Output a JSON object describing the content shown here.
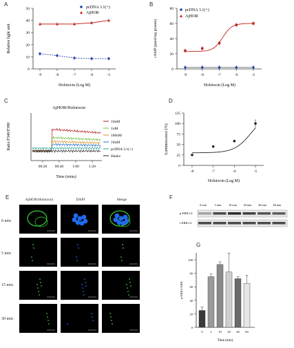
{
  "panels": {
    "A": {
      "label": "A",
      "ylabel": "Relative light unit",
      "xlabel": "Holotocin (Log M)",
      "xticks": [
        "-9",
        "-8",
        "-7",
        "-6",
        "-5"
      ],
      "yticks": [
        "0",
        "10",
        "20",
        "30",
        "40",
        "50"
      ],
      "legend": [
        "pcDNA 3.1(+)",
        "AjHOR"
      ]
    },
    "B": {
      "label": "B",
      "ylabel": "cAMP (pmol/mg protein)",
      "xlabel": "Holotocin (Log M)",
      "xticks": [
        "-9",
        "-8",
        "-7",
        "-6",
        "-5"
      ],
      "yticks": [
        "0",
        "20",
        "40",
        "60",
        "80"
      ],
      "legend": [
        "pcDNA 3.1(+)",
        "AjHOR"
      ]
    },
    "C": {
      "label": "C",
      "title": "AjHOR/Holotocin",
      "ylabel": "Ratio F340/F380",
      "xlabel": "Time (mins)",
      "xticks": [
        "00:20",
        "00:40",
        "1:00",
        "1:20"
      ],
      "legend": [
        "10nM",
        "1uM",
        "100nM",
        "10uM",
        "pcDNA 3.1(+)",
        "Hanks"
      ]
    },
    "D": {
      "label": "D",
      "ylabel": "Luminescence (%)",
      "xlabel": "Holotocin (Log M)",
      "xticks": [
        "-8",
        "-7",
        "-6",
        "-5"
      ],
      "yticks": [
        "0",
        "25",
        "50",
        "75",
        "100",
        "125"
      ]
    },
    "E": {
      "label": "E",
      "columns": [
        "AjHOR/Holotocin",
        "DAPI",
        "Merge"
      ],
      "rows": [
        "0 min",
        "5 min",
        "15 min",
        "30 min"
      ]
    },
    "F": {
      "label": "F",
      "times": [
        "0 min",
        "5 min",
        "10 min",
        "20 min",
        "40 min",
        "60 min"
      ],
      "bands": [
        "p-ERK1/2",
        "t-ERK1/2"
      ]
    },
    "G": {
      "label": "G",
      "ylabel": "p-ERK/t-ERK",
      "xlabel": "Time (min)",
      "yticks": [
        "0",
        "20",
        "40",
        "60",
        "80",
        "100"
      ]
    }
  },
  "colors": {
    "blue": "#1f3fa8",
    "red": "#c0201a",
    "green": "#2a9a2a"
  },
  "chart_data": [
    {
      "type": "line",
      "title": "",
      "xlabel": "Holotocin (Log M)",
      "ylabel": "Relative light unit",
      "x": [
        -9,
        -8,
        -7,
        -6,
        -5
      ],
      "ylim": [
        0,
        50
      ],
      "series": [
        {
          "name": "pcDNA 3.1(+)",
          "values": [
            12.5,
            11,
            9,
            8.5,
            8.5
          ]
        },
        {
          "name": "AjHOR",
          "values": [
            37,
            37,
            37,
            38,
            40
          ]
        }
      ]
    },
    {
      "type": "line",
      "title": "",
      "xlabel": "Holotocin (Log M)",
      "ylabel": "cAMP (pmol/mg protein)",
      "x": [
        -9,
        -8,
        -7,
        -6,
        -5
      ],
      "ylim": [
        0,
        80
      ],
      "series": [
        {
          "name": "pcDNA 3.1(+)",
          "values": [
            2,
            2,
            2,
            2,
            2
          ]
        },
        {
          "name": "AjHOR",
          "values": [
            24,
            27,
            34,
            58,
            60
          ]
        }
      ]
    },
    {
      "type": "line",
      "title": "AjHOR/Holotocin",
      "xlabel": "Time (mins)",
      "ylabel": "Ratio F340/F380",
      "x": [
        "00:20",
        "00:40",
        "1:00",
        "1:20"
      ],
      "series": [
        {
          "name": "10nM"
        },
        {
          "name": "1uM"
        },
        {
          "name": "100nM"
        },
        {
          "name": "10uM"
        },
        {
          "name": "pcDNA 3.1(+)"
        },
        {
          "name": "Hanks"
        }
      ]
    },
    {
      "type": "line",
      "title": "",
      "xlabel": "Holotocin (Log M)",
      "ylabel": "Luminescence (%)",
      "x": [
        -8,
        -7,
        -6,
        -5
      ],
      "ylim": [
        0,
        125
      ],
      "series": [
        {
          "values": [
            25,
            45,
            58,
            100
          ]
        }
      ]
    },
    {
      "type": "bar",
      "title": "",
      "xlabel": "Time (min)",
      "ylabel": "p-ERK/t-ERK",
      "categories": [
        "0",
        "5",
        "10",
        "20",
        "40",
        "60"
      ],
      "values": [
        25,
        75,
        93,
        82,
        72,
        65
      ],
      "ylim": [
        0,
        100
      ]
    }
  ]
}
